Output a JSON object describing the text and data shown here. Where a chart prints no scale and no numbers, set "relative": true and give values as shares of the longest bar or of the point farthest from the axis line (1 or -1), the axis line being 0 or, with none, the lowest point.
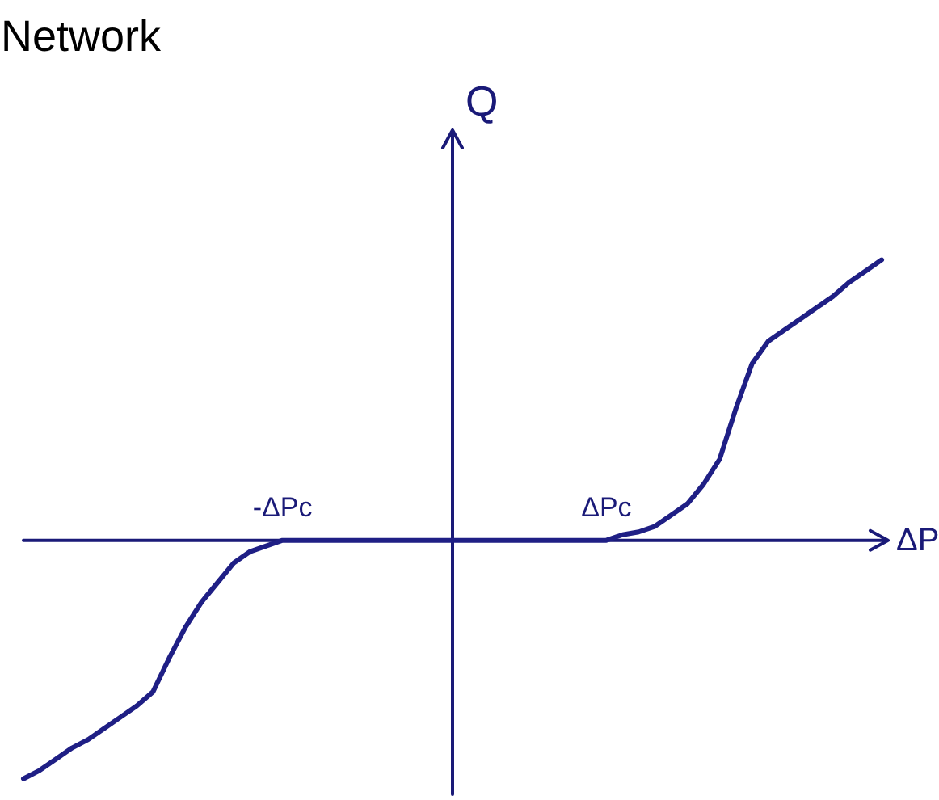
{
  "chart_data": {
    "type": "line",
    "title": "Network",
    "xlabel": "ΔP",
    "ylabel": "Q",
    "relative": true,
    "categories": [
      null,
      null,
      null,
      null,
      null,
      null,
      null,
      null,
      null,
      null,
      null,
      null,
      null,
      null,
      null,
      null,
      "-ΔPc",
      null,
      null,
      null,
      null,
      null,
      null,
      null,
      null,
      null,
      null,
      null,
      null,
      null,
      null,
      null,
      null,
      null,
      null,
      null,
      "ΔPc",
      null,
      null,
      null,
      null,
      null,
      null,
      null,
      null,
      null,
      null,
      null,
      null,
      null,
      null,
      null,
      null,
      null
    ],
    "series": [
      {
        "color": "#1f1f85",
        "values": [
          -0.85,
          -0.82,
          -0.78,
          -0.74,
          -0.71,
          -0.67,
          -0.63,
          -0.59,
          -0.54,
          -0.42,
          -0.31,
          -0.22,
          -0.15,
          -0.08,
          -0.04,
          -0.02,
          0,
          0,
          0,
          0,
          0,
          0,
          0,
          0,
          0,
          0,
          0,
          0,
          0,
          0,
          0,
          0,
          0,
          0,
          0,
          0,
          0,
          0.02,
          0.03,
          0.05,
          0.09,
          0.13,
          0.2,
          0.29,
          0.47,
          0.63,
          0.71,
          0.75,
          0.79,
          0.83,
          0.87,
          0.92,
          0.96,
          1.0
        ]
      }
    ]
  }
}
